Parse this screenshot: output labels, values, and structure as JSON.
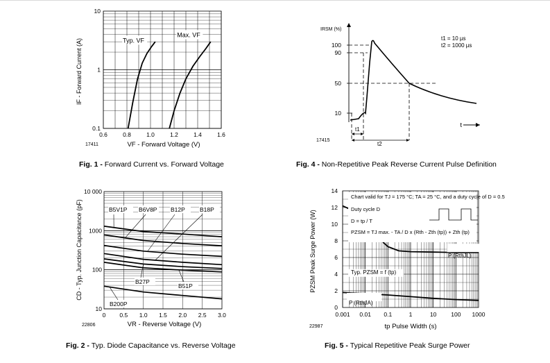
{
  "figures": {
    "fig1": {
      "id_label": "17411",
      "caption_prefix": "Fig. 1 - ",
      "caption_text": "Forward Current vs. Forward Voltage"
    },
    "fig4": {
      "id_label": "17415",
      "caption_prefix": "Fig. 4 - ",
      "caption_text": "Non-Repetitive Peak Reverse Current Pulse Definition"
    },
    "fig2": {
      "id_label": "22806",
      "caption_prefix": "Fig. 2 - ",
      "caption_text": "Typ. Diode Capacitance vs. Reverse Voltage"
    },
    "fig5": {
      "id_label": "22987",
      "caption_prefix": "Fig. 5 - ",
      "caption_text": "Typical Repetitive Peak Surge Power"
    }
  },
  "chart_data": [
    {
      "id": "fig1",
      "type": "line",
      "xlabel": "VF - Forward Voltage (V)",
      "ylabel": "IF - Forward Current (A)",
      "xlim": [
        0.6,
        1.6
      ],
      "ylim": [
        0.1,
        10
      ],
      "yscale": "log",
      "x_ticks": [
        "0.6",
        "0.8",
        "1.0",
        "1.2",
        "1.4",
        "1.6"
      ],
      "y_ticks": [
        "0.1",
        "1",
        "10"
      ],
      "grid": true,
      "series": [
        {
          "name": "Typ. VF",
          "x": [
            0.81,
            0.85,
            0.89,
            0.93,
            0.97,
            1.01,
            1.04
          ],
          "y": [
            0.1,
            0.28,
            0.7,
            1.3,
            1.9,
            2.5,
            3.0
          ]
        },
        {
          "name": "Max. VF",
          "x": [
            1.16,
            1.2,
            1.25,
            1.3,
            1.36,
            1.42,
            1.47,
            1.51
          ],
          "y": [
            0.1,
            0.2,
            0.4,
            0.7,
            1.15,
            1.7,
            2.3,
            3.0
          ]
        }
      ]
    },
    {
      "id": "fig4",
      "type": "line",
      "ylabel": "IRSM (%)",
      "y_ticks": [
        "10",
        "50",
        "90",
        "100"
      ],
      "xlabel": "t",
      "annotations": [
        "t1 = 10 µs",
        "t2 = 1000 µs"
      ],
      "interval_labels": [
        "t1",
        "t2"
      ],
      "series": [
        {
          "name": "",
          "points": [
            [
              0,
              5
            ],
            [
              0.12,
              8
            ],
            [
              0.22,
              100
            ],
            [
              0.45,
              70
            ],
            [
              0.7,
              47
            ],
            [
              1.0,
              30
            ],
            [
              1.4,
              21
            ]
          ]
        }
      ]
    },
    {
      "id": "fig2",
      "type": "line",
      "xlabel": "VR - Reverse Voltage (V)",
      "ylabel": "CD - Typ. Junction Capacitance (pF)",
      "xlim": [
        0,
        3.0
      ],
      "ylim": [
        10,
        10000
      ],
      "yscale": "log",
      "x_ticks": [
        "0",
        "0.5",
        "1.0",
        "1.5",
        "2.0",
        "2.5",
        "3.0"
      ],
      "y_ticks": [
        "10",
        "100",
        "1000",
        "10 000"
      ],
      "grid": true,
      "series": [
        {
          "name": "B5V1P",
          "x": [
            0,
            1.0,
            2.0,
            3.0
          ],
          "y": [
            1300,
            950,
            820,
            700
          ]
        },
        {
          "name": "B6V8P",
          "x": [
            0,
            1.0,
            2.0,
            3.0
          ],
          "y": [
            780,
            560,
            470,
            410
          ]
        },
        {
          "name": "B12P",
          "x": [
            0,
            1.0,
            2.0,
            3.0
          ],
          "y": [
            420,
            300,
            250,
            220
          ]
        },
        {
          "name": "B18P",
          "x": [
            0,
            1.0,
            2.0,
            3.0
          ],
          "y": [
            260,
            185,
            155,
            135
          ]
        },
        {
          "name": "B27P",
          "x": [
            0,
            1.0,
            2.0,
            3.0
          ],
          "y": [
            190,
            140,
            120,
            108
          ]
        },
        {
          "name": "B51P",
          "x": [
            0,
            1.0,
            2.0,
            3.0
          ],
          "y": [
            155,
            112,
            98,
            88
          ]
        },
        {
          "name": "B200P",
          "x": [
            0,
            1.0,
            2.0,
            3.0
          ],
          "y": [
            38,
            27,
            22,
            18
          ]
        }
      ],
      "labels": [
        "B5V1P",
        "B6V8P",
        "B12P",
        "B18P",
        "B27P",
        "B51P",
        "B200P"
      ]
    },
    {
      "id": "fig5",
      "type": "line",
      "xlabel": "tp Pulse Width (s)",
      "ylabel": "PZSM Peak Surge Power (W)",
      "xscale": "log",
      "xlim": [
        0.001,
        1000
      ],
      "ylim": [
        0,
        14
      ],
      "x_ticks": [
        "0.001",
        "0.01",
        "0.1",
        "1",
        "10",
        "100",
        "1000"
      ],
      "y_ticks": [
        "0",
        "2",
        "4",
        "6",
        "8",
        "10",
        "12",
        "14"
      ],
      "grid": true,
      "series": [
        {
          "name": "P (RthJL)",
          "x": [
            0.001,
            0.003,
            0.01,
            0.03,
            0.1,
            0.3,
            1,
            10,
            100,
            1000
          ],
          "y": [
            12.2,
            11.6,
            10.4,
            8.6,
            7.3,
            6.8,
            6.7,
            6.65,
            6.6,
            6.6
          ]
        },
        {
          "name": "P (RthJA)",
          "x": [
            0.001,
            0.01,
            0.1,
            1,
            10,
            100,
            1000
          ],
          "y": [
            1.8,
            1.65,
            1.5,
            1.3,
            1.1,
            0.95,
            0.85
          ]
        }
      ],
      "annotations": [
        "Chart valid for TJ = 175 °C; TA = 25 °C, and a duty cycle of D = 0.5",
        "Duty cycle D",
        "D = tp / T",
        "PZSM = TJ max. - TA / D x (Rth - Zth (tp)) + Zth (tp)",
        "Typ. PZSM = f (tp)",
        "P (RthJL)",
        "P (RthJA)"
      ]
    }
  ]
}
